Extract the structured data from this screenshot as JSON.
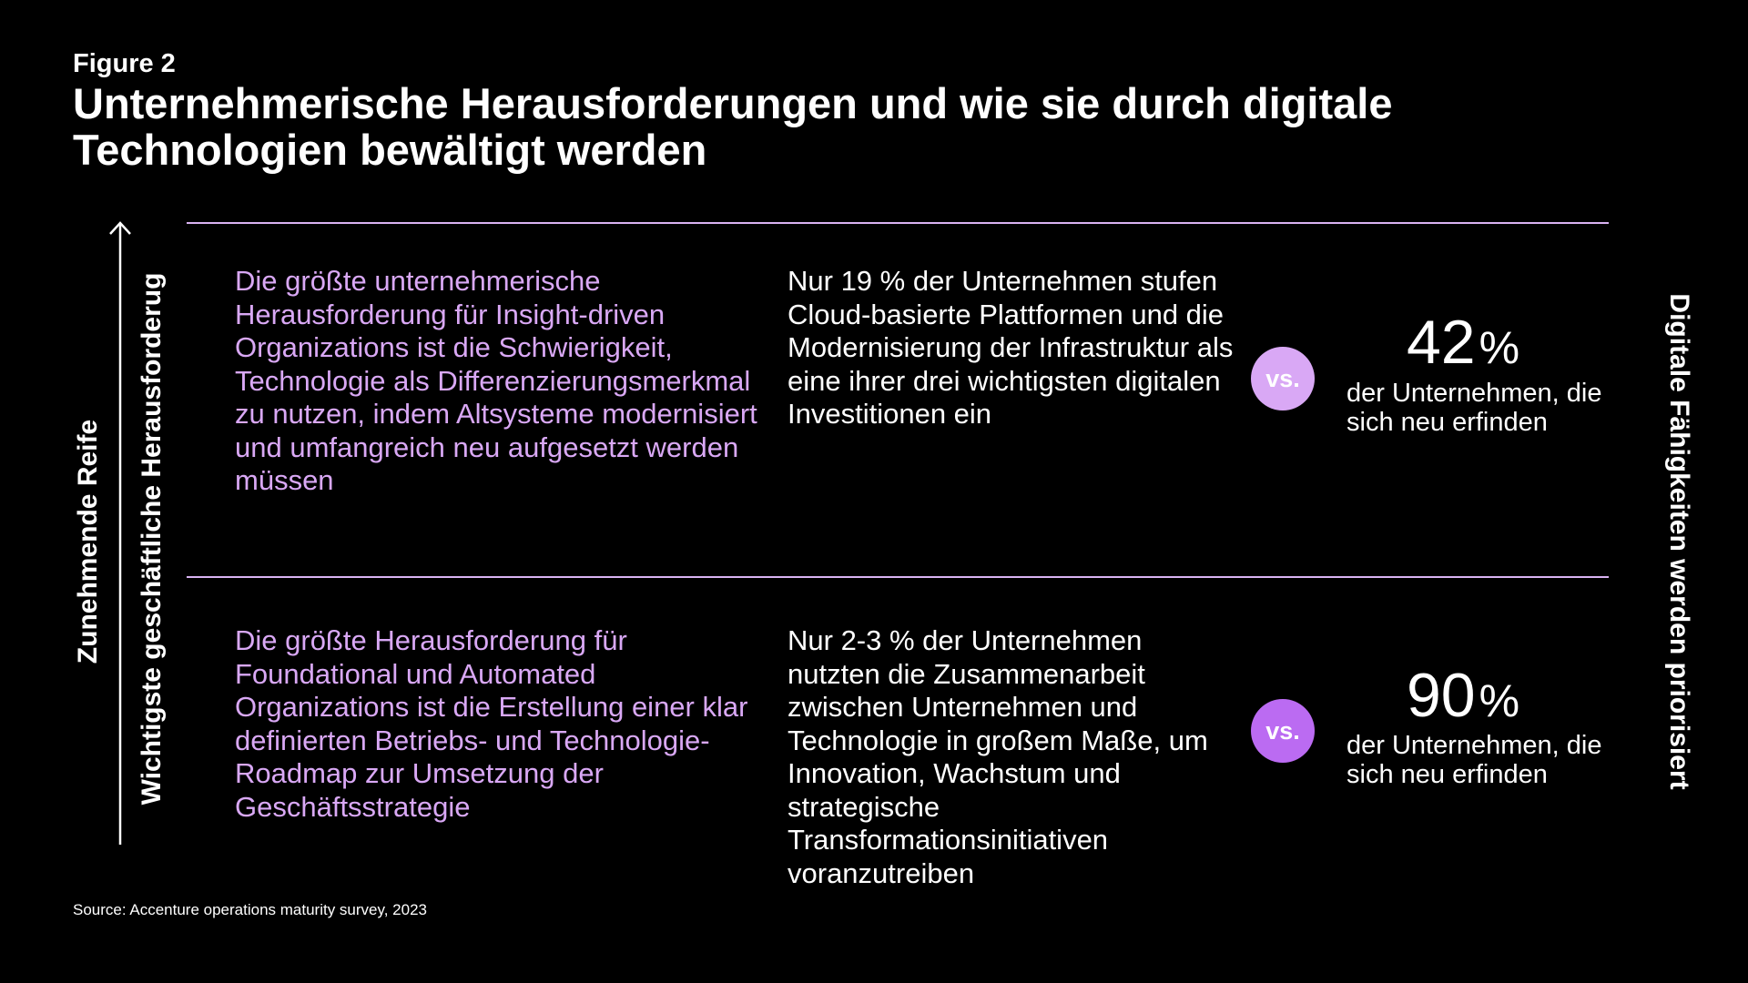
{
  "figure_label": "Figure 2",
  "title": "Unternehmerische Herausforderungen und wie sie durch digitale Technologien bewältigt werden",
  "axis_labels": {
    "left_outer": "Zunehmende Reife",
    "left_inner": "Wichtigste geschäftliche Herausforderug",
    "right": "Digitale Fähigkeiten werden priorisiert"
  },
  "rows": [
    {
      "challenge": "Die größte unternehmerische Herausforderung für Insight-driven Organizations ist die Schwierigkeit, Technologie als Differenzierungsmerkmal zu nutzen, indem Altsysteme modernisiert und umfangreich neu aufgesetzt werden müssen",
      "stat": "Nur 19 % der Unternehmen stufen Cloud-basierte Plattformen und die Modernisierung der Infrastruktur als eine ihrer drei wichtigsten digitalen Investitionen ein",
      "vs_label": "vs.",
      "percent_value": "42",
      "percent_sign": "%",
      "percent_caption": "der Unternehmen, die sich neu erfinden"
    },
    {
      "challenge": "Die größte Herausforderung für Foundational und Automated Organizations ist die Erstellung einer klar definierten Betriebs- und Technologie-Roadmap zur Umsetzung der Geschäftsstrategie",
      "stat": "Nur 2-3 % der Unternehmen nutzten die Zusammenarbeit zwischen Unternehmen und Technologie in großem Maße, um Innovation, Wachstum und strategische Transformationsinitiativen voranzutreiben",
      "vs_label": "vs.",
      "percent_value": "90",
      "percent_sign": "%",
      "percent_caption": "der Unternehmen, die sich neu erfinden"
    }
  ],
  "source": "Source: Accenture operations maturity survey, 2023",
  "colors": {
    "background": "#000000",
    "accent_light_purple": "#d9a8f5",
    "accent_purple": "#bb6bf2",
    "divider": "#d9b3f2",
    "text": "#ffffff"
  }
}
